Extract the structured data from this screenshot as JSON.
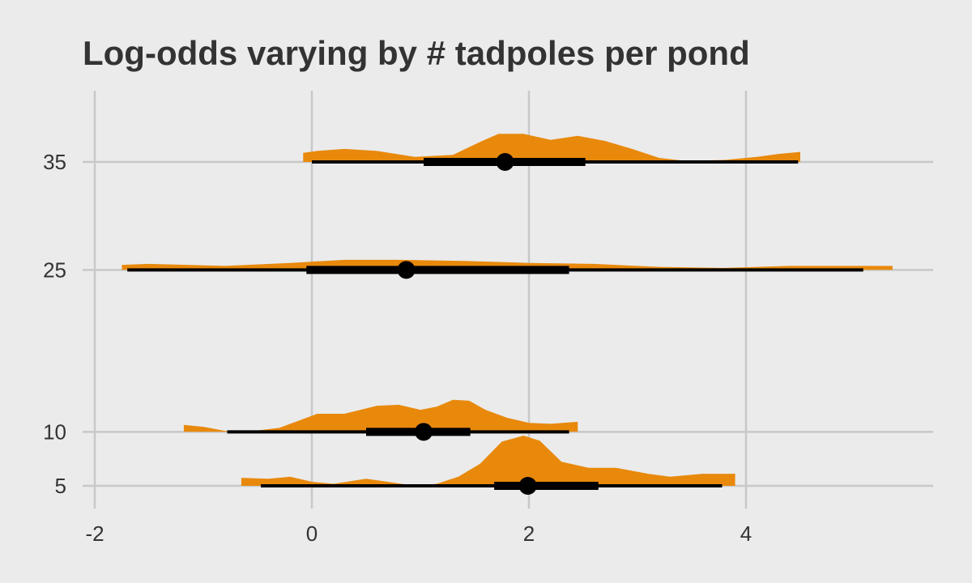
{
  "chart_data": {
    "type": "halfeye",
    "title": "Log-odds varying by # tadpoles per pond",
    "xlabel": "",
    "ylabel": "",
    "xlim": [
      -2,
      5.5
    ],
    "ylim": [
      3,
      42
    ],
    "x_ticks": [
      -2,
      0,
      2,
      4
    ],
    "y_ticks": [
      5,
      10,
      25,
      35
    ],
    "grid": true,
    "colors": {
      "density": "#e8890c",
      "interval": "#000000",
      "grid": "#c8c8c8",
      "background": "#ebebeb"
    },
    "series": [
      {
        "y": 35,
        "point": 1.78,
        "interval_66": [
          1.03,
          2.52
        ],
        "interval_95": [
          0.0,
          4.48
        ],
        "density": [
          [
            -0.08,
            0
          ],
          [
            -0.08,
            0.18
          ],
          [
            0.05,
            0.22
          ],
          [
            0.3,
            0.26
          ],
          [
            0.6,
            0.22
          ],
          [
            0.95,
            0.1
          ],
          [
            1.3,
            0.14
          ],
          [
            1.55,
            0.4
          ],
          [
            1.72,
            0.56
          ],
          [
            1.95,
            0.56
          ],
          [
            2.2,
            0.44
          ],
          [
            2.45,
            0.52
          ],
          [
            2.7,
            0.42
          ],
          [
            2.95,
            0.26
          ],
          [
            3.2,
            0.08
          ],
          [
            3.45,
            0.02
          ],
          [
            3.8,
            0.04
          ],
          [
            4.1,
            0.1
          ],
          [
            4.3,
            0.16
          ],
          [
            4.5,
            0.2
          ],
          [
            4.5,
            0
          ]
        ]
      },
      {
        "y": 25,
        "point": 0.87,
        "interval_66": [
          -0.05,
          2.37
        ],
        "interval_95": [
          -1.7,
          5.08
        ],
        "density": [
          [
            -1.75,
            0
          ],
          [
            -1.75,
            0.1
          ],
          [
            -1.5,
            0.12
          ],
          [
            -0.8,
            0.08
          ],
          [
            -0.2,
            0.14
          ],
          [
            0.3,
            0.2
          ],
          [
            0.8,
            0.2
          ],
          [
            1.4,
            0.18
          ],
          [
            2.0,
            0.14
          ],
          [
            2.6,
            0.12
          ],
          [
            3.2,
            0.06
          ],
          [
            3.8,
            0.04
          ],
          [
            4.4,
            0.08
          ],
          [
            5.0,
            0.08
          ],
          [
            5.35,
            0.08
          ],
          [
            5.35,
            0
          ]
        ]
      },
      {
        "y": 10,
        "point": 1.03,
        "interval_66": [
          0.5,
          1.46
        ],
        "interval_95": [
          -0.78,
          2.37
        ],
        "density": [
          [
            -1.18,
            0
          ],
          [
            -1.18,
            0.14
          ],
          [
            -1.0,
            0.1
          ],
          [
            -0.8,
            0.02
          ],
          [
            -0.6,
            0
          ],
          [
            -0.3,
            0.08
          ],
          [
            -0.1,
            0.24
          ],
          [
            0.05,
            0.36
          ],
          [
            0.3,
            0.36
          ],
          [
            0.6,
            0.52
          ],
          [
            0.8,
            0.54
          ],
          [
            1.0,
            0.44
          ],
          [
            1.15,
            0.5
          ],
          [
            1.3,
            0.64
          ],
          [
            1.45,
            0.62
          ],
          [
            1.6,
            0.44
          ],
          [
            1.8,
            0.28
          ],
          [
            2.0,
            0.18
          ],
          [
            2.2,
            0.16
          ],
          [
            2.45,
            0.2
          ],
          [
            2.45,
            0
          ]
        ]
      },
      {
        "y": 5,
        "point": 1.99,
        "interval_66": [
          1.68,
          2.64
        ],
        "interval_95": [
          -0.47,
          3.78
        ],
        "density": [
          [
            -0.65,
            0
          ],
          [
            -0.65,
            0.16
          ],
          [
            -0.4,
            0.14
          ],
          [
            -0.2,
            0.18
          ],
          [
            0.0,
            0.08
          ],
          [
            0.2,
            0.04
          ],
          [
            0.5,
            0.14
          ],
          [
            0.7,
            0.08
          ],
          [
            0.95,
            0
          ],
          [
            1.15,
            0.04
          ],
          [
            1.35,
            0.18
          ],
          [
            1.55,
            0.44
          ],
          [
            1.75,
            0.88
          ],
          [
            1.95,
            1.0
          ],
          [
            2.1,
            0.9
          ],
          [
            2.3,
            0.48
          ],
          [
            2.55,
            0.36
          ],
          [
            2.8,
            0.36
          ],
          [
            3.1,
            0.24
          ],
          [
            3.3,
            0.18
          ],
          [
            3.6,
            0.24
          ],
          [
            3.9,
            0.24
          ],
          [
            3.9,
            0
          ]
        ]
      }
    ]
  }
}
